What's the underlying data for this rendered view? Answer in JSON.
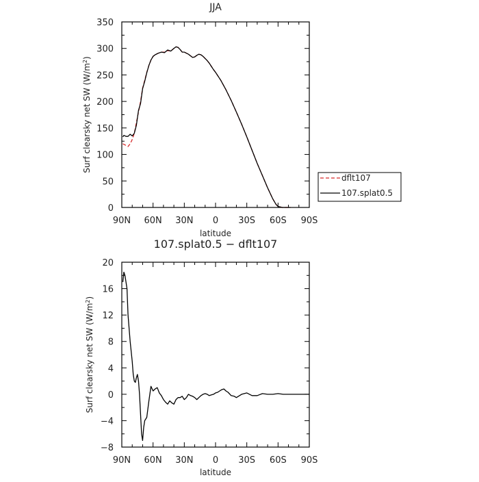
{
  "chart_data": [
    {
      "type": "line",
      "title": "JJA",
      "xlabel": "latitude",
      "ylabel": "Surf clearsky net SW (W/m",
      "ylabel_sup": "2",
      "ylabel_close": ")",
      "xlim": [
        90,
        -90
      ],
      "ylim": [
        0,
        350
      ],
      "xticks": [
        90,
        60,
        30,
        0,
        -30,
        -60,
        -90
      ],
      "xtick_labels": [
        "90N",
        "60N",
        "30N",
        "0",
        "30S",
        "60S",
        "90S"
      ],
      "yticks": [
        0,
        50,
        100,
        150,
        200,
        250,
        300,
        350
      ],
      "ytick_labels": [
        "0",
        "50",
        "100",
        "150",
        "200",
        "250",
        "300",
        "350"
      ],
      "legend": {
        "placement": "right",
        "entries": [
          "dflt107",
          "107.splat0.5"
        ]
      },
      "series": [
        {
          "name": "dflt107",
          "color": "#d62728",
          "dash": "dashed",
          "x": [
            89,
            86,
            84,
            82,
            80,
            78,
            76,
            74,
            72,
            70,
            68,
            66,
            64,
            62,
            60,
            58,
            55,
            52,
            49,
            46,
            43,
            40,
            38,
            36,
            34,
            32,
            30,
            28,
            26,
            24,
            22,
            20,
            18,
            16,
            14,
            12,
            10,
            8,
            6,
            4,
            2,
            0,
            -5,
            -10,
            -15,
            -20,
            -25,
            -30,
            -35,
            -40,
            -45,
            -50,
            -55,
            -58,
            -60,
            -62,
            -64,
            -66,
            -68,
            -70,
            -72
          ],
          "y": [
            120,
            117,
            115,
            120,
            128,
            140,
            160,
            180,
            200,
            225,
            240,
            255,
            268,
            278,
            285,
            288,
            291,
            293,
            293,
            296,
            295,
            300,
            303,
            302,
            298,
            293,
            293,
            291,
            289,
            286,
            283,
            284,
            287,
            289,
            288,
            285,
            281,
            277,
            272,
            266,
            260,
            255,
            240,
            222,
            202,
            180,
            157,
            133,
            108,
            83,
            60,
            37,
            16,
            6,
            2,
            1,
            0,
            0,
            0,
            0,
            0
          ]
        },
        {
          "name": "107.splat0.5",
          "color": "#000000",
          "dash": "solid",
          "x": [
            89,
            88,
            86,
            84,
            82,
            80,
            78,
            76,
            74,
            72,
            70,
            68,
            66,
            64,
            62,
            60,
            58,
            55,
            52,
            49,
            46,
            43,
            40,
            38,
            36,
            34,
            32,
            30,
            28,
            26,
            24,
            22,
            20,
            18,
            16,
            14,
            12,
            10,
            8,
            6,
            4,
            2,
            0,
            -5,
            -10,
            -15,
            -20,
            -25,
            -30,
            -35,
            -40,
            -45,
            -50,
            -55,
            -58,
            -60,
            -62,
            -64,
            -66,
            -68,
            -70,
            -72
          ],
          "y": [
            133,
            136,
            134,
            134,
            138,
            135,
            140,
            155,
            183,
            196,
            224,
            238,
            254,
            268,
            278,
            285,
            288,
            291,
            293,
            292,
            297,
            295,
            300,
            303,
            302,
            298,
            293,
            293,
            291,
            289,
            286,
            283,
            284,
            287,
            289,
            288,
            285,
            281,
            277,
            272,
            266,
            260,
            255,
            240,
            222,
            202,
            180,
            157,
            133,
            108,
            83,
            60,
            37,
            16,
            6,
            2,
            1,
            0,
            0,
            0,
            0,
            0
          ]
        }
      ]
    },
    {
      "type": "line",
      "title": "107.splat0.5 − dflt107",
      "xlabel": "latitude",
      "ylabel": "Surf clearsky net SW (W/m",
      "ylabel_sup": "2",
      "ylabel_close": ")",
      "xlim": [
        90,
        -90
      ],
      "ylim": [
        -8,
        20
      ],
      "xticks": [
        90,
        60,
        30,
        0,
        -30,
        -60,
        -90
      ],
      "xtick_labels": [
        "90N",
        "60N",
        "30N",
        "0",
        "30S",
        "60S",
        "90S"
      ],
      "yticks": [
        -8,
        -4,
        0,
        4,
        8,
        12,
        16,
        20
      ],
      "ytick_labels": [
        "−8",
        "−4",
        "0",
        "4",
        "8",
        "12",
        "16",
        "20"
      ],
      "series": [
        {
          "color": "#000000",
          "dash": "solid",
          "x": [
            89,
            88,
            87,
            86,
            85,
            84,
            82,
            80,
            79,
            78,
            77,
            76,
            75,
            74,
            73,
            72,
            71,
            70,
            69,
            68,
            66,
            64,
            62,
            60,
            58,
            56,
            54,
            52,
            50,
            48,
            46,
            44,
            42,
            40,
            38,
            36,
            34,
            32,
            30,
            28,
            26,
            24,
            22,
            20,
            18,
            16,
            14,
            12,
            10,
            8,
            6,
            4,
            2,
            0,
            -2,
            -4,
            -6,
            -8,
            -10,
            -12,
            -15,
            -18,
            -20,
            -25,
            -30,
            -35,
            -40,
            -45,
            -50,
            -55,
            -60,
            -65,
            -70,
            -75,
            -80,
            -85,
            -90
          ],
          "y": [
            17,
            18.5,
            18,
            17,
            16,
            12,
            8,
            5,
            3,
            2,
            1.8,
            2.5,
            3,
            2,
            0,
            -3,
            -6,
            -7,
            -5,
            -4,
            -3.5,
            -1,
            1.2,
            0.5,
            0.8,
            1.0,
            0.2,
            -0.2,
            -0.8,
            -1.2,
            -1.5,
            -1.0,
            -1.3,
            -1.5,
            -0.8,
            -0.5,
            -0.5,
            -0.3,
            -0.8,
            -0.5,
            0,
            -0.2,
            -0.3,
            -0.5,
            -0.8,
            -0.5,
            -0.2,
            0,
            0.1,
            0,
            -0.2,
            -0.1,
            0,
            0.2,
            0.3,
            0.5,
            0.7,
            0.8,
            0.5,
            0.3,
            -0.2,
            -0.3,
            -0.5,
            0,
            0.2,
            -0.2,
            -0.2,
            0.1,
            0,
            0,
            0.1,
            0,
            0,
            0,
            0,
            0,
            0
          ]
        }
      ]
    }
  ]
}
